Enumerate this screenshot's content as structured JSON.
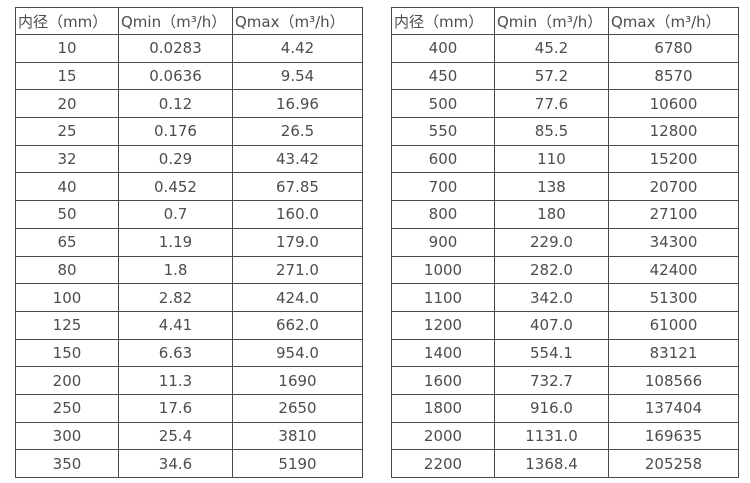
{
  "colors": {
    "background": "#ffffff",
    "border": "#4a4a4a",
    "text": "#4d4d4d"
  },
  "tables": [
    {
      "name": "flow-spec-table-small-diameters",
      "headers": [
        "内径（mm）",
        "Qmin（m³/h）",
        "Qmax（m³/h）"
      ],
      "rows": [
        [
          "10",
          "0.0283",
          "4.42"
        ],
        [
          "15",
          "0.0636",
          "9.54"
        ],
        [
          "20",
          "0.12",
          "16.96"
        ],
        [
          "25",
          "0.176",
          "26.5"
        ],
        [
          "32",
          "0.29",
          "43.42"
        ],
        [
          "40",
          "0.452",
          "67.85"
        ],
        [
          "50",
          "0.7",
          "160.0"
        ],
        [
          "65",
          "1.19",
          "179.0"
        ],
        [
          "80",
          "1.8",
          "271.0"
        ],
        [
          "100",
          "2.82",
          "424.0"
        ],
        [
          "125",
          "4.41",
          "662.0"
        ],
        [
          "150",
          "6.63",
          "954.0"
        ],
        [
          "200",
          "11.3",
          "1690"
        ],
        [
          "250",
          "17.6",
          "2650"
        ],
        [
          "300",
          "25.4",
          "3810"
        ],
        [
          "350",
          "34.6",
          "5190"
        ]
      ]
    },
    {
      "name": "flow-spec-table-large-diameters",
      "headers": [
        "内径（mm）",
        "Qmin（m³/h）",
        "Qmax（m³/h）"
      ],
      "rows": [
        [
          "400",
          "45.2",
          "6780"
        ],
        [
          "450",
          "57.2",
          "8570"
        ],
        [
          "500",
          "77.6",
          "10600"
        ],
        [
          "550",
          "85.5",
          "12800"
        ],
        [
          "600",
          "110",
          "15200"
        ],
        [
          "700",
          "138",
          "20700"
        ],
        [
          "800",
          "180",
          "27100"
        ],
        [
          "900",
          "229.0",
          "34300"
        ],
        [
          "1000",
          "282.0",
          "42400"
        ],
        [
          "1100",
          "342.0",
          "51300"
        ],
        [
          "1200",
          "407.0",
          "61000"
        ],
        [
          "1400",
          "554.1",
          "83121"
        ],
        [
          "1600",
          "732.7",
          "108566"
        ],
        [
          "1800",
          "916.0",
          "137404"
        ],
        [
          "2000",
          "1131.0",
          "169635"
        ],
        [
          "2200",
          "1368.4",
          "205258"
        ]
      ]
    }
  ]
}
